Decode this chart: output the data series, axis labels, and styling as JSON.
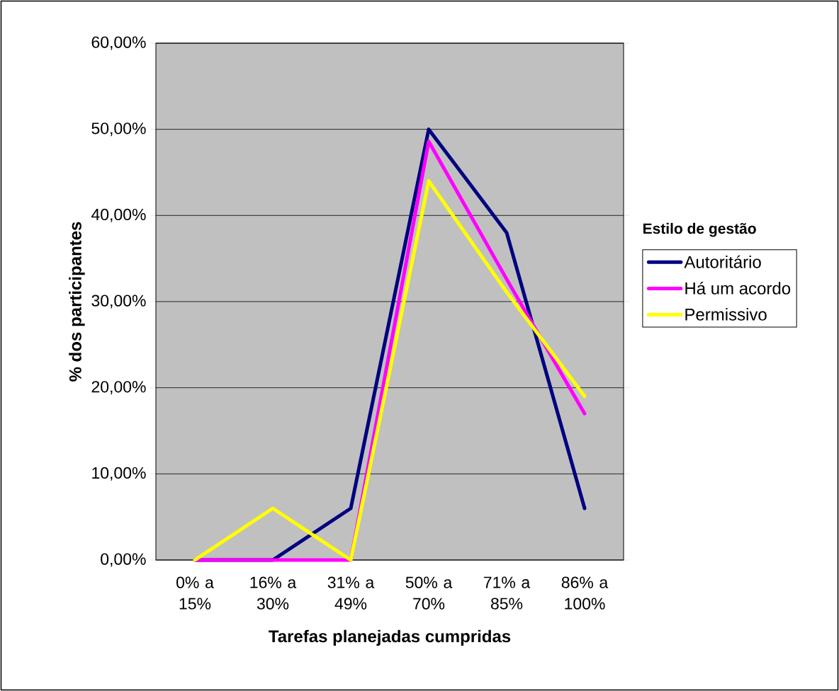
{
  "chart_data": {
    "type": "line",
    "xlabel": "Tarefas planejadas cumpridas",
    "ylabel": "% dos participantes",
    "legend_title": "Estilo de gestão",
    "categories": [
      "0% a 15%",
      "16% a 30%",
      "31% a 49%",
      "50% a 70%",
      "71% a 85%",
      "86% a 100%"
    ],
    "series": [
      {
        "name": "Autoritário",
        "color": "#000080",
        "values": [
          0,
          0,
          6,
          50,
          38,
          6
        ]
      },
      {
        "name": "Há um acordo",
        "color": "#ff00ff",
        "values": [
          0,
          0,
          0,
          48.6,
          32.6,
          17
        ]
      },
      {
        "name": "Permissivo",
        "color": "#ffff00",
        "values": [
          0,
          6,
          0,
          44,
          31.1,
          19
        ]
      }
    ],
    "ylim": [
      0,
      60
    ],
    "yticks": [
      {
        "value": 0,
        "label": "0,00%"
      },
      {
        "value": 10,
        "label": "10,00%"
      },
      {
        "value": 20,
        "label": "20,00%"
      },
      {
        "value": 30,
        "label": "30,00%"
      },
      {
        "value": 40,
        "label": "40,00%"
      },
      {
        "value": 50,
        "label": "50,00%"
      },
      {
        "value": 60,
        "label": "60,00%"
      }
    ],
    "grid": "y",
    "legend": "right",
    "line_style": "solid"
  }
}
